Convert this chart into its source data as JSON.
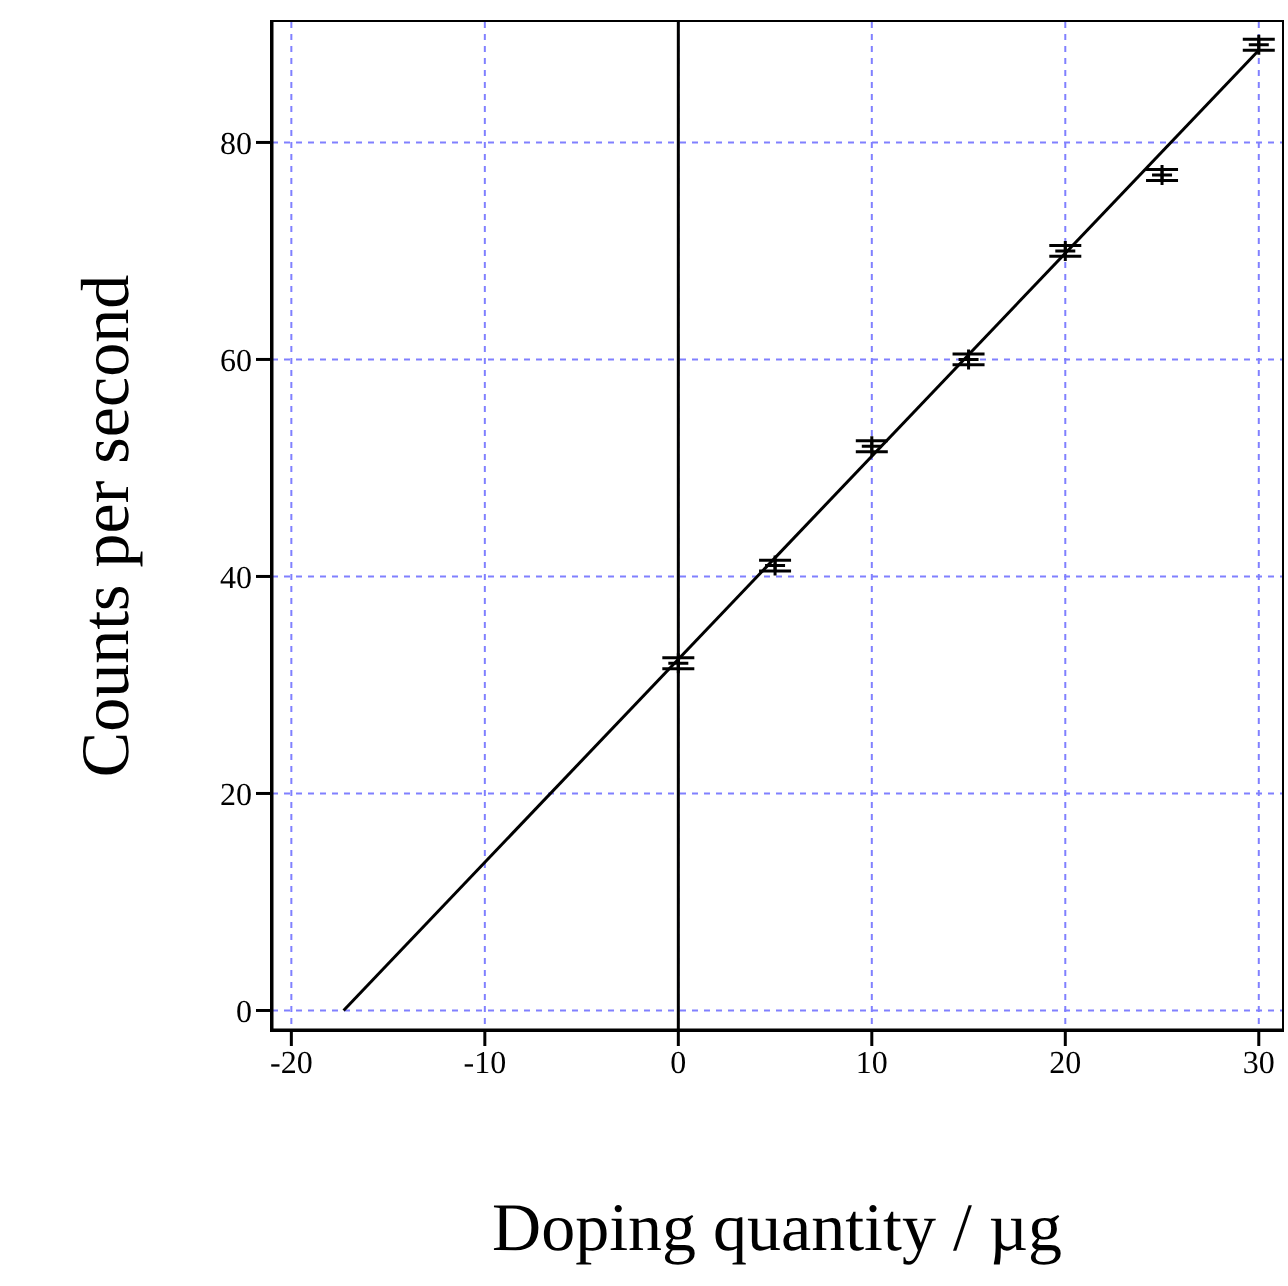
{
  "chart_data": {
    "type": "scatter",
    "xlabel": "Doping quantity / µg",
    "ylabel": "Counts per second",
    "xlim": [
      -21,
      31.2
    ],
    "ylim": [
      -1.8,
      91.1
    ],
    "xticks": [
      -20,
      -10,
      0,
      10,
      20,
      30
    ],
    "yticks": [
      0,
      20,
      40,
      60,
      80
    ],
    "grid": true,
    "line_style": "solid",
    "ref_lines": [
      {
        "axis": "x",
        "value": 0,
        "color": "#000000"
      }
    ],
    "series": [
      {
        "color": "#000000",
        "marker": "cross",
        "x": [
          0,
          5,
          10,
          15,
          20,
          25,
          30
        ],
        "values": [
          32,
          41,
          52,
          60,
          70,
          77,
          89
        ],
        "errors": [
          0.5,
          0.5,
          0.5,
          0.5,
          0.5,
          0.5,
          0.5
        ]
      },
      {
        "type": "line",
        "marker": "none",
        "color": "#000000",
        "x": [
          -17.3,
          30
        ],
        "values": [
          0,
          88.5
        ]
      }
    ]
  }
}
